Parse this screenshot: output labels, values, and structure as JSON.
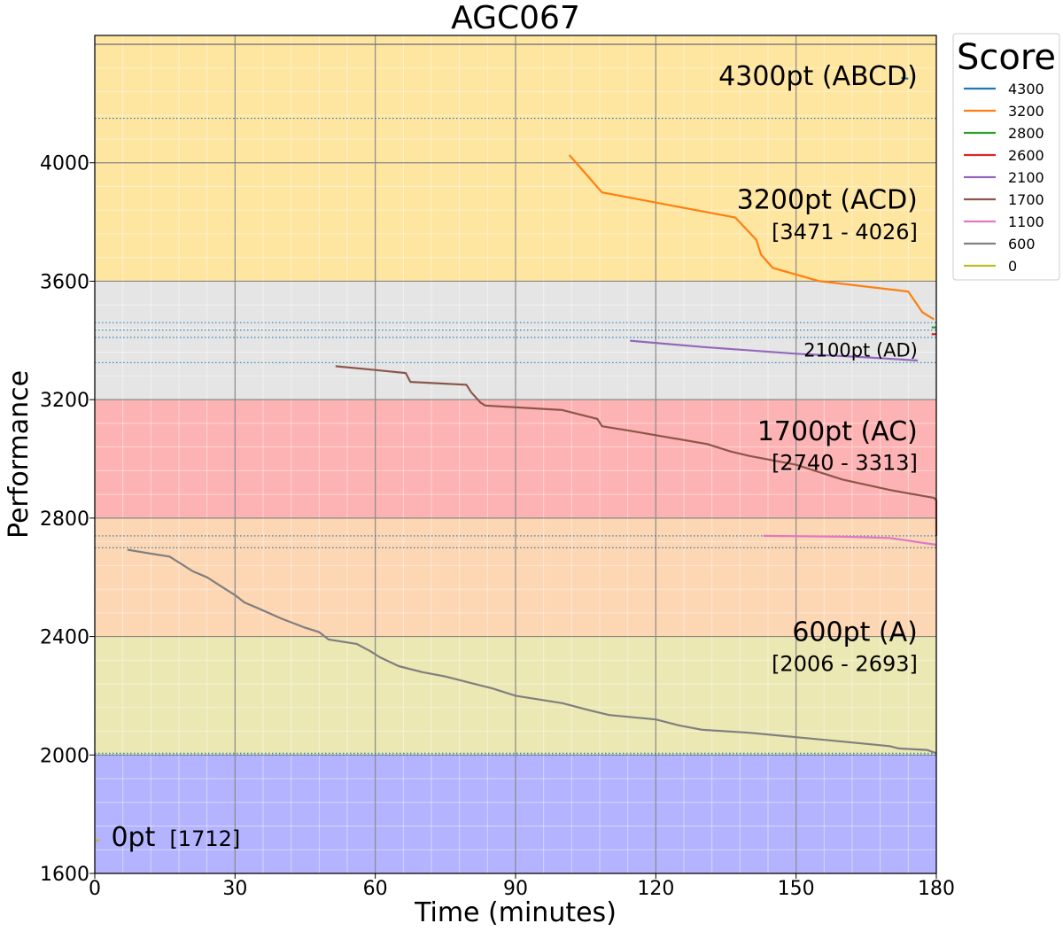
{
  "chart_data": {
    "type": "line",
    "title": "AGC067",
    "xlabel": "Time (minutes)",
    "ylabel": "Performance",
    "xlim": [
      0,
      180
    ],
    "ylim": [
      1600,
      4430
    ],
    "xticks": [
      0,
      30,
      60,
      90,
      120,
      150,
      180
    ],
    "yticks": [
      1600,
      2000,
      2400,
      2800,
      3200,
      3600,
      4000
    ],
    "grid": true,
    "legend": {
      "title": "Score",
      "position": "outside-top-right",
      "entries": [
        {
          "label": "4300",
          "color": "#1f77b4"
        },
        {
          "label": "3200",
          "color": "#ff7f0e"
        },
        {
          "label": "2800",
          "color": "#2ca02c"
        },
        {
          "label": "2600",
          "color": "#d62728"
        },
        {
          "label": "2100",
          "color": "#9467bd"
        },
        {
          "label": "1700",
          "color": "#8c564b"
        },
        {
          "label": "1100",
          "color": "#e377c2"
        },
        {
          "label": "600",
          "color": "#7f7f7f"
        },
        {
          "label": "0",
          "color": "#bcbd22"
        }
      ]
    },
    "bands": [
      {
        "from": 1600,
        "to": 2000,
        "color": "#b3b3ff"
      },
      {
        "from": 2000,
        "to": 2400,
        "color": "#ebe8b3"
      },
      {
        "from": 2400,
        "to": 2800,
        "color": "#fdd6b3"
      },
      {
        "from": 2800,
        "to": 3200,
        "color": "#fdb2b3"
      },
      {
        "from": 3200,
        "to": 3600,
        "color": "#e5e5e5"
      },
      {
        "from": 3600,
        "to": 4430,
        "color": "#fee5a0"
      }
    ],
    "reference_lines": [
      {
        "y": 4400,
        "style": "solid",
        "color": "#777777"
      },
      {
        "y": 4150,
        "style": "dotted",
        "color": "#1f77b4"
      },
      {
        "y": 3460,
        "style": "dotted",
        "color": "#1f77b4"
      },
      {
        "y": 3435,
        "style": "dotted",
        "color": "#1f77b4"
      },
      {
        "y": 3410,
        "style": "dotted",
        "color": "#1f77b4"
      },
      {
        "y": 3325,
        "style": "dotted",
        "color": "#1f77b4"
      },
      {
        "y": 2740,
        "style": "dotted",
        "color": "#1f77b4"
      },
      {
        "y": 2700,
        "style": "dotted",
        "color": "#1f77b4"
      },
      {
        "y": 2006,
        "style": "dotted",
        "color": "#1f77b4"
      },
      {
        "y": 2000,
        "style": "dotted",
        "color": "#1f77b4"
      }
    ],
    "annotations": [
      {
        "text": "4300pt (ABCD)",
        "x": 176,
        "y": 4262,
        "size": "large"
      },
      {
        "text": "3200pt (ACD)",
        "x": 176,
        "y": 3845,
        "size": "large"
      },
      {
        "text": "[3471 - 4026]",
        "x": 176,
        "y": 3742,
        "size": "small"
      },
      {
        "text": "2100pt (AD)",
        "x": 176,
        "y": 3345,
        "size": "medium"
      },
      {
        "text": "1700pt (AC)",
        "x": 176,
        "y": 3063,
        "size": "large"
      },
      {
        "text": "[2740 - 3313]",
        "x": 176,
        "y": 2963,
        "size": "small"
      },
      {
        "text": "600pt (A)",
        "x": 176,
        "y": 2385,
        "size": "large"
      },
      {
        "text": "[2006 - 2693]",
        "x": 176,
        "y": 2283,
        "size": "small"
      },
      {
        "text": "0pt",
        "x": 3.5,
        "y": 1693,
        "size": "large",
        "anchor": "start"
      },
      {
        "text": "[1712]",
        "x": 16,
        "y": 1693,
        "size": "small",
        "anchor": "start"
      }
    ],
    "series": [
      {
        "name": "4300",
        "color": "#1f77b4",
        "x": [
          172.5,
          174
        ],
        "y": [
          4287,
          4284
        ]
      },
      {
        "name": "3200",
        "color": "#ff7f0e",
        "x": [
          101.5,
          108.5,
          137,
          141.5,
          142.5,
          145,
          155,
          174,
          175.5,
          177,
          179.5
        ],
        "y": [
          4026,
          3900,
          3815,
          3740,
          3690,
          3645,
          3600,
          3565,
          3530,
          3495,
          3471
        ]
      },
      {
        "name": "2800",
        "color": "#2ca02c",
        "x": [
          179,
          180
        ],
        "y": [
          3444,
          3444
        ]
      },
      {
        "name": "2600",
        "color": "#d62728",
        "x": [
          179,
          180
        ],
        "y": [
          3421,
          3421
        ]
      },
      {
        "name": "2100",
        "color": "#9467bd",
        "x": [
          114.5,
          130,
          150,
          165,
          176
        ],
        "y": [
          3399,
          3378,
          3355,
          3343,
          3332
        ]
      },
      {
        "name": "1700",
        "color": "#8c564b",
        "x": [
          51.5,
          60,
          66.5,
          67.5,
          79.5,
          80.5,
          82.5,
          83.5,
          100,
          107.5,
          108.5,
          114.5,
          120,
          131,
          136,
          140,
          150,
          160,
          170,
          179.5,
          180,
          180
        ],
        "y": [
          3313,
          3300,
          3290,
          3260,
          3250,
          3225,
          3190,
          3180,
          3165,
          3135,
          3110,
          3095,
          3080,
          3050,
          3025,
          3010,
          2980,
          2930,
          2895,
          2868,
          2860,
          2740
        ]
      },
      {
        "name": "1100",
        "color": "#e377c2",
        "x": [
          143,
          160,
          170,
          180
        ],
        "y": [
          2740,
          2737,
          2733,
          2710
        ]
      },
      {
        "name": "600",
        "color": "#7f7f7f",
        "x": [
          7,
          12,
          16,
          18,
          21,
          24,
          27,
          30,
          32,
          35,
          40,
          45,
          48,
          50,
          56,
          59,
          61,
          65,
          70,
          75,
          80,
          85,
          90,
          100,
          106,
          110,
          120,
          125,
          130,
          140,
          150,
          160,
          170,
          172,
          178,
          180
        ],
        "y": [
          2693,
          2680,
          2670,
          2650,
          2620,
          2600,
          2570,
          2540,
          2515,
          2495,
          2460,
          2430,
          2415,
          2390,
          2375,
          2350,
          2330,
          2300,
          2280,
          2265,
          2245,
          2225,
          2200,
          2175,
          2150,
          2135,
          2120,
          2100,
          2085,
          2075,
          2060,
          2045,
          2030,
          2022,
          2017,
          2006
        ]
      },
      {
        "name": "0",
        "color": "#bcbd22",
        "x": [
          0,
          1
        ],
        "y": [
          1712,
          1712
        ]
      }
    ]
  }
}
